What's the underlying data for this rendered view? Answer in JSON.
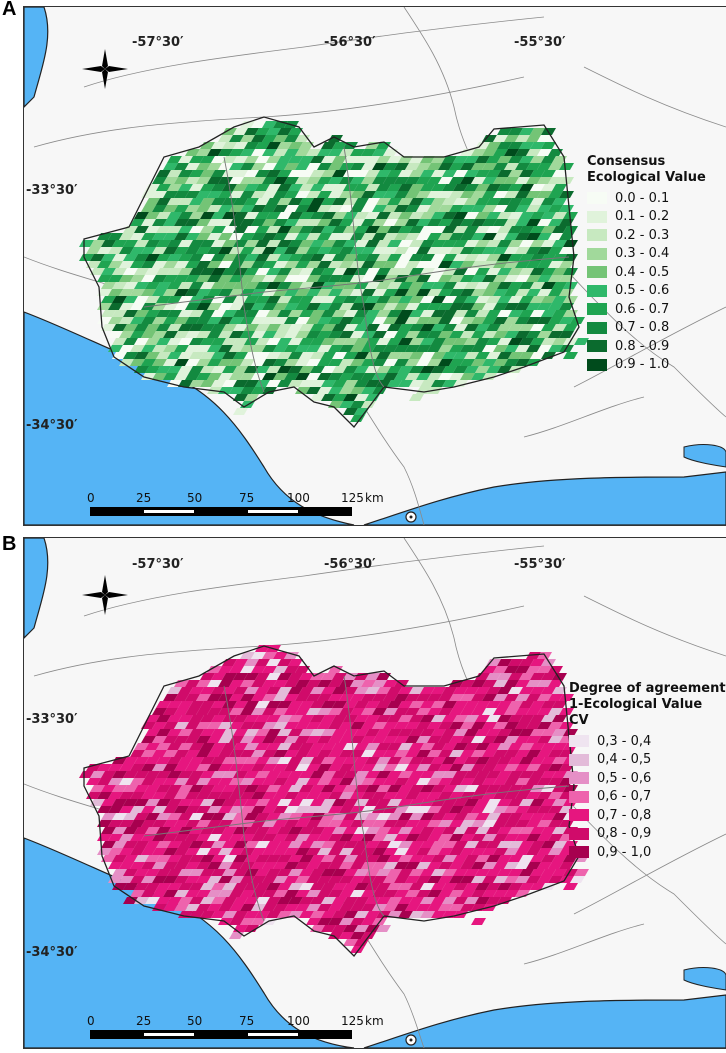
{
  "panels": [
    {
      "letter": "A",
      "lon_labels": [
        "-57°30′",
        "-56°30′",
        "-55°30′"
      ],
      "lat_labels": [
        "-33°30′",
        "-34°30′"
      ],
      "legend": {
        "title_line1": "Consensus",
        "title_line2": "Ecological Value",
        "classes": [
          {
            "label": "0.0 - 0.1",
            "color": "#f7fcf5"
          },
          {
            "label": "0.1 - 0.2",
            "color": "#e0f3db"
          },
          {
            "label": "0.2 - 0.3",
            "color": "#c7e9c0"
          },
          {
            "label": "0.3 - 0.4",
            "color": "#a1d99b"
          },
          {
            "label": "0.4 - 0.5",
            "color": "#74c476"
          },
          {
            "label": "0.5 - 0.6",
            "color": "#2fb86a"
          },
          {
            "label": "0.6 - 0.7",
            "color": "#1fa451"
          },
          {
            "label": "0.7 - 0.8",
            "color": "#138a40"
          },
          {
            "label": "0.8 - 0.9",
            "color": "#0b6b2e"
          },
          {
            "label": "0.9 - 1.0",
            "color": "#004b1c"
          }
        ]
      },
      "scale": {
        "labels": [
          "0",
          "25",
          "50",
          "75",
          "100",
          "125"
        ],
        "unit": "km"
      }
    },
    {
      "letter": "B",
      "lon_labels": [
        "-57°30′",
        "-56°30′",
        "-55°30′"
      ],
      "lat_labels": [
        "-33°30′",
        "-34°30′"
      ],
      "legend": {
        "title_line1": "Degree of agreement",
        "title_line2": "1-Ecological Value CV",
        "classes": [
          {
            "label": "0,3 - 0,4",
            "color": "#efe4f0"
          },
          {
            "label": "0,4 - 0,5",
            "color": "#e3bbd9"
          },
          {
            "label": "0,5 - 0,6",
            "color": "#e58fc6"
          },
          {
            "label": "0,6 - 0,7",
            "color": "#ee63ad"
          },
          {
            "label": "0,7 - 0,8",
            "color": "#e6167f"
          },
          {
            "label": "0,8 - 0,9",
            "color": "#d00b6a"
          },
          {
            "label": "0,9 - 1,0",
            "color": "#a7004f"
          }
        ]
      },
      "scale": {
        "labels": [
          "0",
          "25",
          "50",
          "75",
          "100",
          "125"
        ],
        "unit": "km"
      }
    }
  ],
  "colors": {
    "water": "#55b4f5",
    "land": "#f7f7f7",
    "boundary": "#222222",
    "roads": "#8a8a8a"
  }
}
